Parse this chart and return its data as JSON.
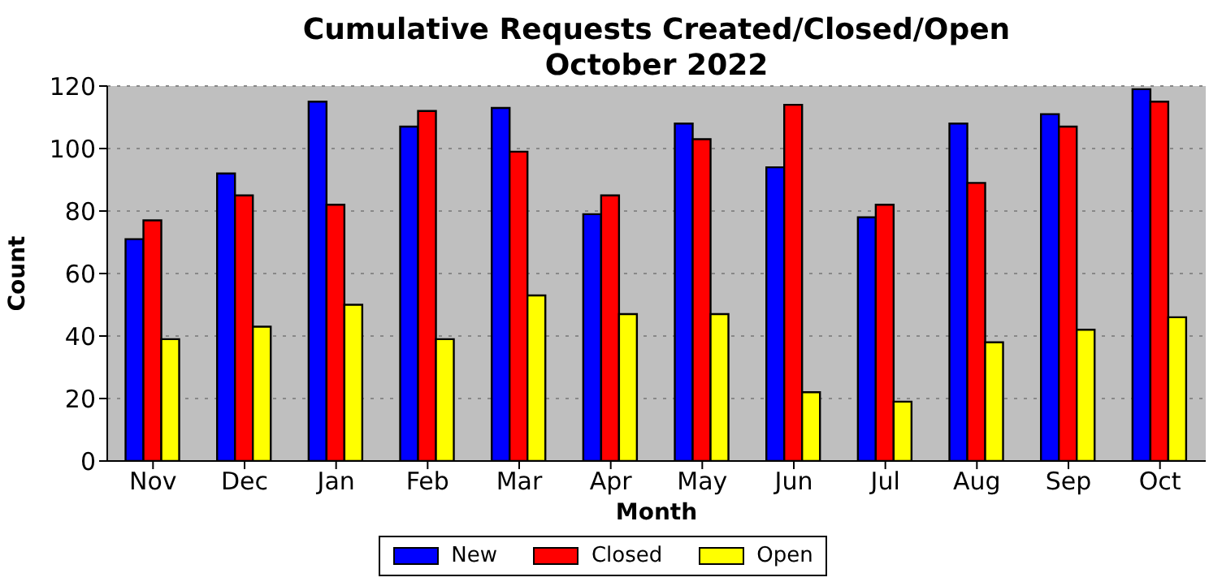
{
  "chart_data": {
    "type": "bar",
    "title": "Cumulative Requests Created/Closed/Open\nOctober 2022",
    "xlabel": "Month",
    "ylabel": "Count",
    "categories": [
      "Nov",
      "Dec",
      "Jan",
      "Feb",
      "Mar",
      "Apr",
      "May",
      "Jun",
      "Jul",
      "Aug",
      "Sep",
      "Oct"
    ],
    "series": [
      {
        "name": "New",
        "color": "#0000ff",
        "values": [
          71,
          92,
          115,
          107,
          113,
          79,
          108,
          94,
          78,
          108,
          111,
          119
        ]
      },
      {
        "name": "Closed",
        "color": "#ff0000",
        "values": [
          77,
          85,
          82,
          112,
          99,
          85,
          103,
          114,
          82,
          89,
          107,
          115
        ]
      },
      {
        "name": "Open",
        "color": "#ffff00",
        "values": [
          39,
          43,
          50,
          39,
          53,
          47,
          47,
          22,
          19,
          38,
          42,
          46
        ]
      }
    ],
    "ylim": [
      0,
      120
    ],
    "yticks": [
      0,
      20,
      40,
      60,
      80,
      100,
      120
    ],
    "grid": "y",
    "legend": "bottom"
  }
}
